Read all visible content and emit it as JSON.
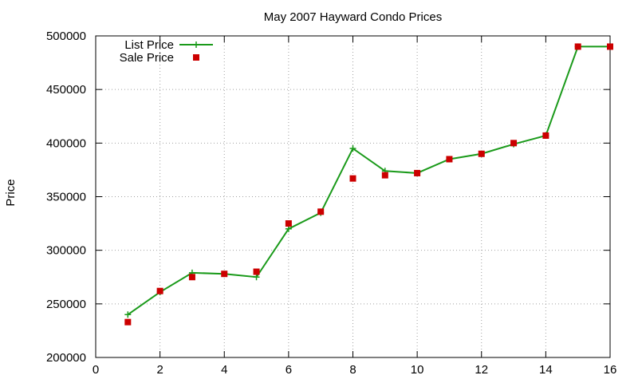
{
  "chart_data": {
    "type": "line",
    "title": "May 2007 Hayward Condo Prices",
    "xlabel": "",
    "ylabel": "Price",
    "xlim": [
      0,
      16
    ],
    "ylim": [
      200000,
      500000
    ],
    "x_ticks": [
      0,
      2,
      4,
      6,
      8,
      10,
      12,
      14,
      16
    ],
    "y_ticks": [
      200000,
      250000,
      300000,
      350000,
      400000,
      450000,
      500000
    ],
    "grid": true,
    "legend_position": "top-left",
    "series": [
      {
        "name": "List Price",
        "style": "linespoints",
        "marker": "plus",
        "color": "#1a9a1a",
        "x": [
          1,
          2,
          3,
          4,
          5,
          6,
          7,
          8,
          9,
          10,
          11,
          12,
          13,
          14,
          15,
          16
        ],
        "values": [
          240000,
          261000,
          279000,
          278000,
          275000,
          320000,
          335000,
          395000,
          374000,
          372000,
          385000,
          390000,
          399000,
          407000,
          490000,
          490000
        ]
      },
      {
        "name": "Sale Price",
        "style": "points",
        "marker": "square",
        "color": "#cc0000",
        "x": [
          1,
          2,
          3,
          4,
          5,
          6,
          7,
          8,
          9,
          10,
          11,
          12,
          13,
          14,
          15,
          16
        ],
        "values": [
          233000,
          262000,
          275000,
          278000,
          280000,
          325000,
          336000,
          367000,
          370000,
          372000,
          385000,
          390000,
          400000,
          407000,
          490000,
          490000
        ]
      }
    ]
  }
}
